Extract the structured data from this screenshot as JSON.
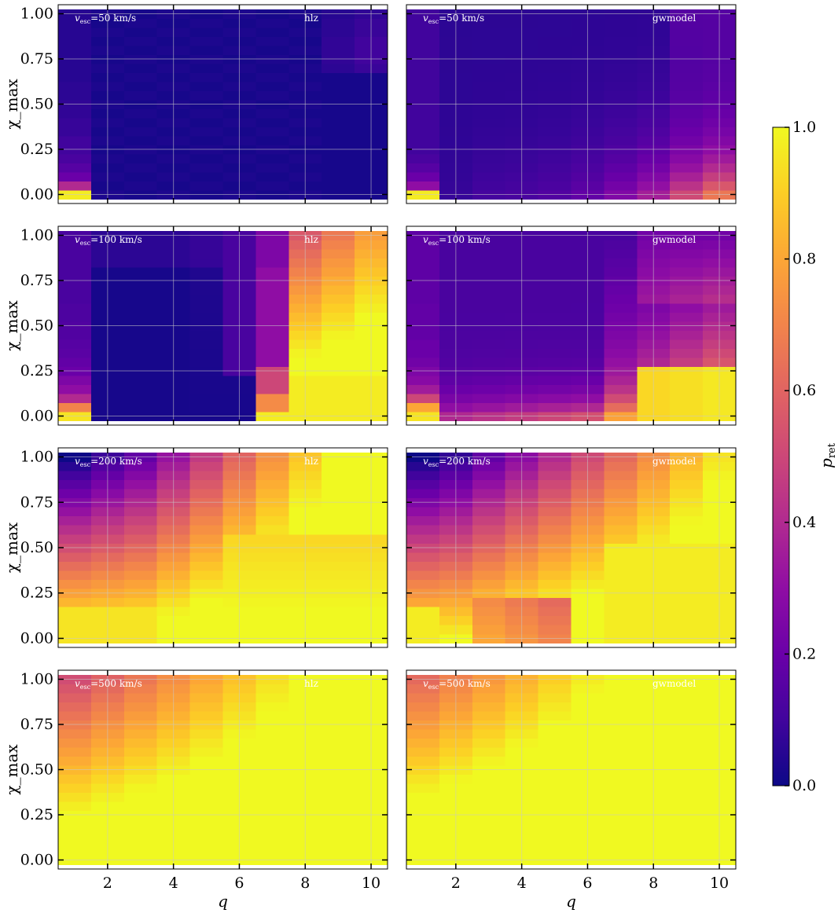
{
  "chart_data": {
    "type": "heatmap",
    "q_bins": [
      1,
      2,
      3,
      4,
      5,
      6,
      7,
      8,
      9,
      10
    ],
    "chi_bins": [
      0.0,
      0.05,
      0.1,
      0.15,
      0.2,
      0.25,
      0.3,
      0.35,
      0.4,
      0.45,
      0.5,
      0.55,
      0.6,
      0.65,
      0.7,
      0.75,
      0.8,
      0.85,
      0.9,
      0.95,
      1.0
    ],
    "xlabel": "q",
    "ylabel": "χ_max",
    "xticks": [
      "2",
      "4",
      "6",
      "8",
      "10"
    ],
    "yticks": [
      "0.00",
      "0.25",
      "0.50",
      "0.75",
      "1.00"
    ],
    "xlim": [
      0.5,
      10.5
    ],
    "ylim": [
      -0.05,
      1.05
    ],
    "colorbar": {
      "label": "p_ret",
      "ticks": [
        "0.0",
        "0.2",
        "0.4",
        "0.6",
        "0.8",
        "1.0"
      ],
      "range": [
        0,
        1
      ],
      "colormap": "plasma"
    },
    "panels": [
      {
        "vesc_label": "=50 km/s",
        "model": "hlz",
        "column": 0,
        "row": 0,
        "gen": {
          "type": "step",
          "thresh": [
            1.0,
            1.6,
            1.6,
            1.6,
            1.6,
            1.6,
            1.6,
            1.6,
            1.6,
            1.6
          ],
          "low": 0.02,
          "high": 0.97,
          "col0": [
            0.97,
            0.4,
            0.2,
            0.15,
            0.12,
            0.1,
            0.1,
            0.08,
            0.08,
            0.07,
            0.07,
            0.06,
            0.06,
            0.05,
            0.05,
            0.05,
            0.05,
            0.05,
            0.05,
            0.05,
            0.05
          ],
          "lastcols": [
            0,
            0,
            0,
            0,
            0,
            0,
            0,
            0,
            0,
            0,
            0,
            0,
            0,
            0,
            0.04,
            0.05,
            0.05,
            0.05,
            0.04,
            0.04,
            0.03
          ]
        }
      },
      {
        "vesc_label": "=50 km/s",
        "model": "gwmodel",
        "column": 1,
        "row": 0,
        "gen": {
          "type": "smooth",
          "base": [
            0.97,
            0.02,
            0.05,
            0.06,
            0.08,
            0.12,
            0.2,
            0.3,
            0.45,
            0.6,
            0.7
          ],
          "decay": 0.25,
          "floor": 0.05,
          "col0": [
            0.97,
            0.3,
            0.2,
            0.15,
            0.12,
            0.1,
            0.1,
            0.1,
            0.1,
            0.1,
            0.1,
            0.1,
            0.1,
            0.1,
            0.1,
            0.1,
            0.1,
            0.1,
            0.1,
            0.1,
            0.1
          ]
        }
      },
      {
        "vesc_label": "=100 km/s",
        "model": "hlz",
        "column": 0,
        "row": 1,
        "gen": {
          "type": "v100hlz"
        }
      },
      {
        "vesc_label": "=100 km/s",
        "model": "gwmodel",
        "column": 1,
        "row": 1,
        "gen": {
          "type": "v100gw"
        }
      },
      {
        "vesc_label": "=200 km/s",
        "model": "hlz",
        "column": 0,
        "row": 2,
        "gen": {
          "type": "v200hlz"
        }
      },
      {
        "vesc_label": "=200 km/s",
        "model": "gwmodel",
        "column": 1,
        "row": 2,
        "gen": {
          "type": "v200gw"
        }
      },
      {
        "vesc_label": "=500 km/s",
        "model": "hlz",
        "column": 0,
        "row": 3,
        "gen": {
          "type": "v500hlz"
        }
      },
      {
        "vesc_label": "=500 km/s",
        "model": "gwmodel",
        "column": 1,
        "row": 3,
        "gen": {
          "type": "v500gw"
        }
      }
    ],
    "grid": true
  }
}
